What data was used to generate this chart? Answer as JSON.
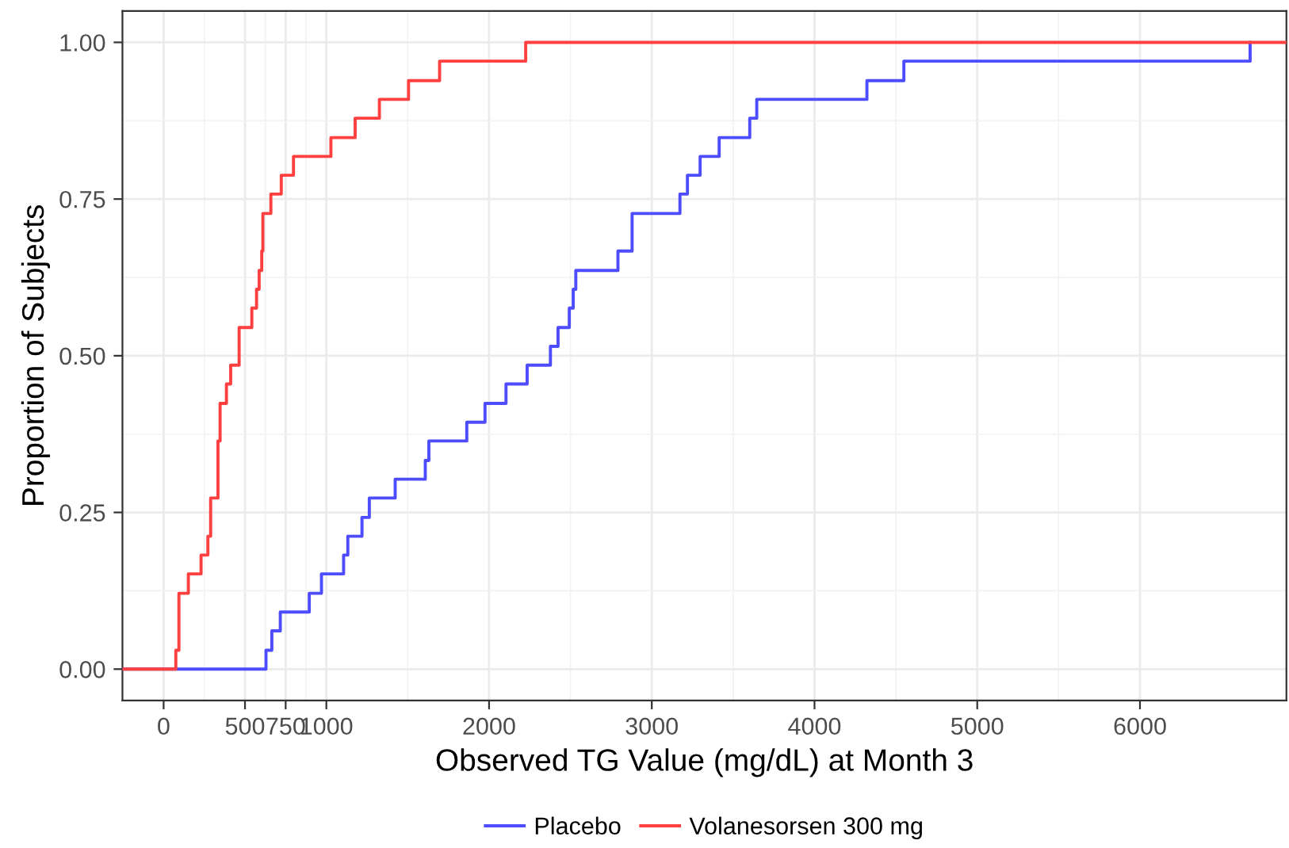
{
  "chart_data": {
    "type": "step",
    "xlabel": "Observed TG Value (mg/dL) at Month 3",
    "ylabel": "Proportion of Subjects",
    "xlim": [
      -253,
      6900
    ],
    "ylim": [
      -0.05,
      1.05
    ],
    "xticks": [
      0,
      500,
      750,
      1000,
      2000,
      3000,
      4000,
      5000,
      6000
    ],
    "yticks": [
      {
        "value": 0,
        "label": "0.00"
      },
      {
        "value": 0.25,
        "label": "0.25"
      },
      {
        "value": 0.5,
        "label": "0.50"
      },
      {
        "value": 0.75,
        "label": "0.75"
      },
      {
        "value": 1,
        "label": "1.00"
      }
    ],
    "grid": true,
    "legend": "bottom",
    "line_style": "solid",
    "marker": "none",
    "series": [
      {
        "name": "Placebo",
        "color": "#4d4dff",
        "x": [
          -253,
          629,
          665,
          717,
          895,
          970,
          1106,
          1132,
          1219,
          1264,
          1423,
          1608,
          1630,
          1863,
          1975,
          2104,
          2234,
          2377,
          2424,
          2493,
          2517,
          2533,
          2792,
          2879,
          3173,
          3219,
          3297,
          3414,
          3602,
          3645,
          4322,
          4549,
          6677
        ],
        "values": [
          0,
          0.03,
          0.061,
          0.091,
          0.121,
          0.152,
          0.182,
          0.212,
          0.242,
          0.273,
          0.303,
          0.333,
          0.364,
          0.394,
          0.424,
          0.455,
          0.485,
          0.515,
          0.545,
          0.576,
          0.606,
          0.636,
          0.667,
          0.727,
          0.758,
          0.788,
          0.818,
          0.848,
          0.879,
          0.909,
          0.939,
          0.97,
          1.0
        ]
      },
      {
        "name": "Volanesorsen 300 mg",
        "color": "#ff4040",
        "x": [
          -253,
          75,
          94,
          152,
          230,
          272,
          289,
          334,
          347,
          386,
          412,
          464,
          542,
          571,
          587,
          603,
          610,
          659,
          723,
          798,
          1028,
          1177,
          1326,
          1505,
          1696,
          2225,
          6900
        ],
        "values": [
          0,
          0.03,
          0.121,
          0.152,
          0.182,
          0.212,
          0.273,
          0.364,
          0.424,
          0.455,
          0.485,
          0.545,
          0.576,
          0.606,
          0.636,
          0.667,
          0.727,
          0.758,
          0.788,
          0.818,
          0.848,
          0.879,
          0.909,
          0.939,
          0.97,
          1.0,
          1.0
        ]
      }
    ]
  }
}
